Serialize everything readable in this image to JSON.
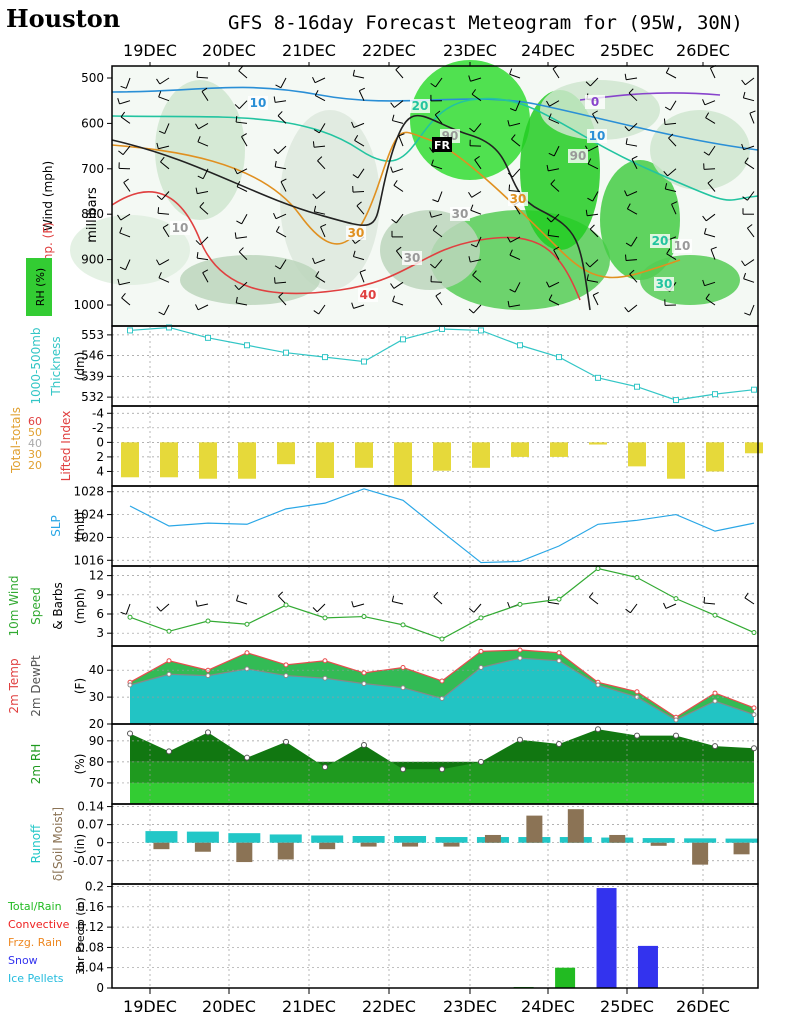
{
  "header": {
    "station": "Houston",
    "title": "GFS 8-16day Forecast Meteogram for (95W, 30N)"
  },
  "colors": {
    "thickness": "#33c6c6",
    "slp": "#2aa7e6",
    "lifted_index": "#e6d93a",
    "wind": "#33aa33",
    "temp_fill": "#33bb55",
    "temp_line": "#e84c4c",
    "dewpt_fill": "#22c4c4",
    "dewpt_line": "#888888",
    "rh_dark": "#117711",
    "rh_mid": "#1f9a1f",
    "rh_light": "#33cc33",
    "runoff": "#22c7c7",
    "soil": "#8b7355",
    "snow": "#3333ee",
    "rain": "#22bb22"
  },
  "chart_data": [
    {
      "type": "contour",
      "panel": "upper-air",
      "ylabels": {
        "wind": "Wind (mph)",
        "temp": "Temp. (F)",
        "rh": "RH (%)",
        "unit": "millibars"
      },
      "ylim": [
        1000,
        500
      ],
      "yticks": [
        500,
        600,
        700,
        800,
        900,
        1000
      ],
      "contour_labels": {
        "wind_speed": [
          "10",
          "20",
          "10",
          "0",
          "20",
          "30"
        ],
        "temperature": [
          "30",
          "30",
          "40",
          "FR"
        ],
        "rh": [
          "90",
          "90",
          "30",
          "10",
          "30",
          "10"
        ]
      }
    },
    {
      "type": "line",
      "panel": "thickness",
      "ylabel": "1000-500mb Thickness",
      "yunit": "(dm)",
      "ylim": [
        529,
        556
      ],
      "yticks": [
        532,
        539,
        546,
        553
      ],
      "values": [
        554.5,
        555.5,
        552,
        549.5,
        547,
        545.5,
        544,
        551.5,
        555,
        554.5,
        549.5,
        545.5,
        538.5,
        535.5,
        531,
        533,
        534.5
      ]
    },
    {
      "type": "bar",
      "panel": "stability",
      "ylabel": "Lifted Index",
      "total_totals_label": "Total-totals",
      "total_totals_ticks": [
        "60",
        "50",
        "40",
        "30",
        "20"
      ],
      "ylim": [
        -5,
        6
      ],
      "yticks": [
        -4,
        -2,
        0,
        2,
        4
      ],
      "values": [
        4.8,
        4.8,
        5,
        5,
        3,
        4.9,
        3.5,
        6,
        3.9,
        3.5,
        2,
        2,
        0.3,
        3.3,
        5,
        4,
        1.5
      ]
    },
    {
      "type": "line",
      "panel": "slp",
      "ylabel": "SLP",
      "yunit": "(mb)",
      "ylim": [
        1015,
        1029
      ],
      "yticks": [
        1016,
        1020,
        1024,
        1028
      ],
      "values": [
        1025.5,
        1022,
        1022.5,
        1022.3,
        1025,
        1026,
        1028.5,
        1026.5,
        1021,
        1015.6,
        1015.8,
        1018.5,
        1022.3,
        1023,
        1024,
        1021.1,
        1022.5
      ]
    },
    {
      "type": "line",
      "panel": "wind10m",
      "ylabel": "10m Wind Speed & Barbs",
      "yunit": "(mph)",
      "ylim": [
        1,
        13.5
      ],
      "yticks": [
        3,
        6,
        9,
        12
      ],
      "values": [
        5.5,
        3.3,
        4.9,
        4.4,
        7.4,
        5.4,
        5.6,
        4.3,
        2.1,
        5.4,
        7.5,
        8.3,
        13.1,
        11.7,
        8.4,
        5.8,
        3.1
      ]
    },
    {
      "type": "area",
      "panel": "temp2m",
      "ylabel": "2m Temp",
      "dewpt_label": "2m DewPt",
      "yunit": "(F)",
      "ylim": [
        20,
        49
      ],
      "yticks": [
        20,
        30,
        40
      ],
      "series": [
        {
          "name": "2m Temp",
          "values": [
            35.5,
            43.5,
            40,
            46.5,
            42,
            43.5,
            39,
            41,
            36,
            47,
            47.5,
            46.5,
            35.5,
            32,
            22.5,
            31.5,
            26
          ]
        },
        {
          "name": "2m DewPt",
          "values": [
            34.5,
            38.5,
            38,
            40.5,
            38,
            37,
            35,
            33.5,
            29.5,
            41,
            44.5,
            43.5,
            34.5,
            30,
            21.5,
            28.5,
            23.5
          ]
        }
      ]
    },
    {
      "type": "area",
      "panel": "rh2m",
      "ylabel": "2m RH",
      "yunit": "(%)",
      "ylim": [
        60,
        98
      ],
      "yticks": [
        70,
        80,
        90
      ],
      "values": [
        93.5,
        85,
        94,
        82,
        89.5,
        77.5,
        88,
        76.5,
        76.5,
        80,
        90.5,
        88.5,
        95.5,
        92.5,
        92.5,
        87.5,
        86.5
      ]
    },
    {
      "type": "bar",
      "panel": "runoff",
      "ylabel": "Runoff",
      "soil_label": "δ[Soil Moist]",
      "yunit": "(in)",
      "ylim": [
        -0.16,
        0.15
      ],
      "yticks": [
        "0.14",
        "0.07",
        "0",
        "-0.07"
      ],
      "ytick_values": [
        0.14,
        0.07,
        0,
        -0.07
      ],
      "runoff": [
        null,
        0.045,
        0.043,
        0.037,
        0.032,
        0.028,
        0.026,
        0.026,
        0.022,
        0.022,
        0.022,
        0.022,
        0.02,
        0.018,
        0.017,
        0.016
      ],
      "soil_moisture": [
        null,
        -0.025,
        -0.035,
        -0.075,
        -0.065,
        -0.025,
        -0.015,
        -0.015,
        -0.015,
        0.03,
        0.105,
        0.13,
        0.03,
        -0.012,
        -0.085,
        -0.045
      ]
    },
    {
      "type": "bar",
      "panel": "precip",
      "ylabel": "3hr Precip (in)",
      "legend": [
        "Total/Rain",
        "Convective",
        "Frzg. Rain",
        "Snow",
        "Ice Pellets"
      ],
      "legend_colors": [
        "#22bb22",
        "#ee2222",
        "#ee8822",
        "#3333ee",
        "#22bbdd"
      ],
      "ylim": [
        0,
        0.205
      ],
      "yticks": [
        "0.2",
        "0.16",
        "0.12",
        "0.08",
        "0.04",
        "0"
      ],
      "ytick_values": [
        0.2,
        0.16,
        0.12,
        0.08,
        0.04,
        0
      ],
      "bars": [
        {
          "index": 9.5,
          "value": 0.002,
          "kind": "rain"
        },
        {
          "index": 10.5,
          "value": 0.04,
          "kind": "rain"
        },
        {
          "index": 11.5,
          "value": 0.197,
          "kind": "snow"
        },
        {
          "index": 12.5,
          "value": 0.083,
          "kind": "snow"
        }
      ]
    },
    {
      "type": "axis",
      "panel": "dates",
      "categories": [
        "19DEC",
        "20DEC",
        "21DEC",
        "22DEC",
        "23DEC",
        "24DEC",
        "25DEC",
        "26DEC"
      ]
    }
  ]
}
